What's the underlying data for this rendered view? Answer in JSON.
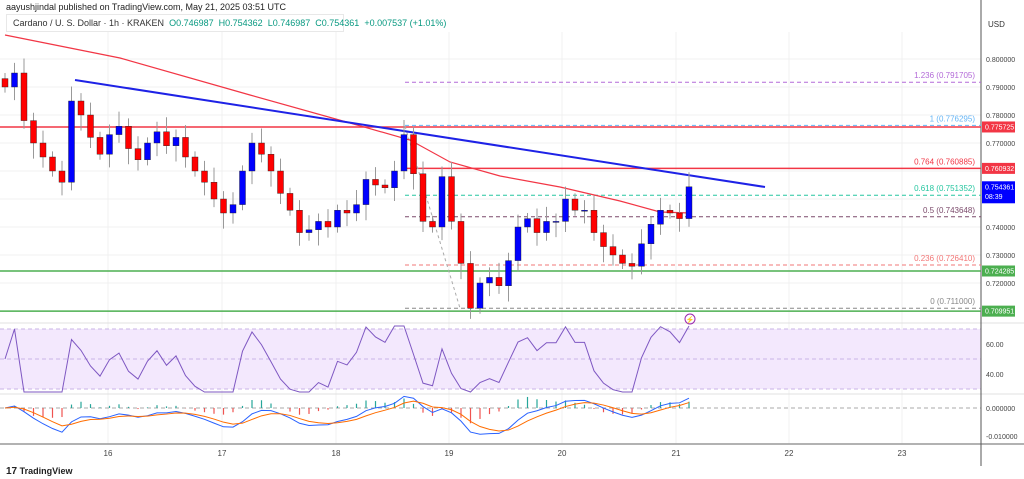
{
  "header": {
    "published": "aayushjindal published on TradingView.com, May 21, 2025 03:51 UTC",
    "symbol": "Cardano / U. S. Dollar · 1h · KRAKEN",
    "open": "O0.746987",
    "high": "H0.754362",
    "low": "L0.746987",
    "close": "C0.754361",
    "change": "+0.007537 (+1.01%)"
  },
  "price_axis": {
    "currency": "USD",
    "ticks": [
      "0.800000",
      "0.790000",
      "0.780000",
      "0.770000",
      "0.740000",
      "0.730000",
      "0.720000"
    ],
    "badges": [
      {
        "value": "0.775725",
        "color": "#f23645"
      },
      {
        "value": "0.760932",
        "color": "#f23645"
      },
      {
        "value": "0.754361",
        "sub": "08:39",
        "color": "#0000ff"
      },
      {
        "value": "0.724285",
        "color": "#4caf50"
      },
      {
        "value": "0.709951",
        "color": "#4caf50"
      }
    ]
  },
  "fib_levels": [
    {
      "label": "1.236 (0.791705)",
      "price": 0.791705,
      "color": "#b36ad8"
    },
    {
      "label": "1 (0.776295)",
      "price": 0.776295,
      "color": "#64b5f6"
    },
    {
      "label": "0.764 (0.760885)",
      "price": 0.760885,
      "color": "#f23645"
    },
    {
      "label": "0.618 (0.751352)",
      "price": 0.751352,
      "color": "#26c6a0"
    },
    {
      "label": "0.5 (0.743648)",
      "price": 0.743648,
      "color": "#7b4a6b"
    },
    {
      "label": "0.236 (0.726410)",
      "price": 0.72641,
      "color": "#f27777"
    },
    {
      "label": "0 (0.711000)",
      "price": 0.711,
      "color": "#888888"
    }
  ],
  "rsi_axis": [
    "60.00",
    "40.00"
  ],
  "macd_axis": [
    "0.000000",
    "-0.010000"
  ],
  "time_axis": [
    "16",
    "17",
    "18",
    "19",
    "20",
    "21",
    "22",
    "23"
  ],
  "footer": {
    "brand": "TradingView"
  },
  "colors": {
    "up": "#0000ff",
    "down": "#ff0000",
    "ema": "#f23645",
    "trendline": "#1e22e6",
    "rsi": "#7e57c2"
  },
  "chart_data": {
    "type": "candlestick",
    "ylim": [
      0.705,
      0.81
    ],
    "closes": [
      0.79,
      0.795,
      0.778,
      0.77,
      0.765,
      0.76,
      0.756,
      0.785,
      0.78,
      0.772,
      0.766,
      0.773,
      0.776,
      0.768,
      0.764,
      0.77,
      0.774,
      0.769,
      0.772,
      0.765,
      0.76,
      0.756,
      0.75,
      0.745,
      0.748,
      0.76,
      0.77,
      0.766,
      0.76,
      0.752,
      0.746,
      0.738,
      0.739,
      0.742,
      0.74,
      0.746,
      0.745,
      0.748,
      0.757,
      0.755,
      0.754,
      0.76,
      0.773,
      0.759,
      0.742,
      0.74,
      0.758,
      0.742,
      0.727,
      0.711,
      0.72,
      0.722,
      0.719,
      0.728,
      0.74,
      0.743,
      0.738,
      0.742,
      0.742,
      0.75,
      0.746,
      0.746,
      0.738,
      0.733,
      0.73,
      0.727,
      0.726,
      0.734,
      0.741,
      0.746,
      0.745,
      0.743,
      0.754361
    ],
    "horizontal_lines": [
      {
        "price": 0.775725,
        "color": "#f23645"
      },
      {
        "price": 0.760932,
        "color": "#f23645"
      },
      {
        "price": 0.724285,
        "color": "#4caf50"
      },
      {
        "price": 0.709951,
        "color": "#4caf50"
      }
    ]
  }
}
